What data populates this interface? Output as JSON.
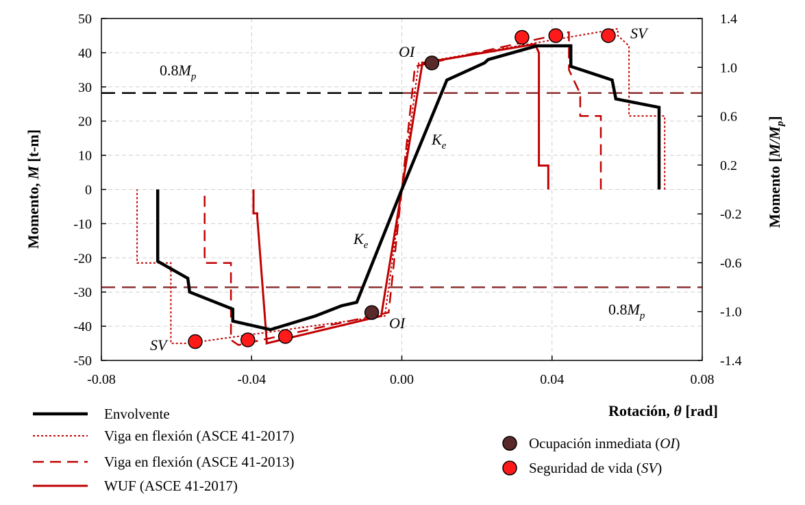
{
  "chart_data": {
    "type": "line",
    "xlabel": {
      "prefix": "Rotación, ",
      "sym": "θ",
      "suffix": " [rad]"
    },
    "ylabel": {
      "prefix": "Momento, ",
      "sym": "M",
      "suffix": " [t-m]"
    },
    "y2label": {
      "prefix": "Momento  [",
      "sym": "M/M",
      "sub": "p",
      "suffix": "]"
    },
    "xlim": [
      -0.08,
      0.08
    ],
    "ylim": [
      -50,
      50
    ],
    "y2lim": [
      -1.4,
      1.4
    ],
    "xticks": [
      -0.08,
      -0.04,
      0.0,
      0.04,
      0.08
    ],
    "xtick_labels": [
      "-0.08",
      "-0.04",
      "0.00",
      "0.04",
      "0.08"
    ],
    "yticks": [
      -50,
      -40,
      -30,
      -20,
      -10,
      0,
      10,
      20,
      30,
      40,
      50
    ],
    "ytick_labels": [
      "-50",
      "-40",
      "-30",
      "-20",
      "-10",
      "0",
      "10",
      "20",
      "30",
      "40",
      "50"
    ],
    "y2ticks": [
      -1.4,
      -1.0,
      -0.6,
      -0.2,
      0.2,
      0.6,
      1.0,
      1.4
    ],
    "y2tick_labels": [
      "-1.4",
      "-1.0",
      "-0.6",
      "-0.2",
      "0.2",
      "0.6",
      "1.0",
      "1.4"
    ],
    "grid": true,
    "colors": {
      "envolvente": "#000000",
      "red": "#c00000",
      "brown_line": "#8b3030",
      "oi_marker": "#5a2a2a",
      "sv_marker": "#ff1a1a"
    },
    "series": [
      {
        "name": "Envolvente",
        "style": "solid-black",
        "x": [
          0.0685,
          0.0685,
          0.057,
          0.056,
          0.045,
          0.045,
          0.036,
          0.023,
          0.022,
          0.012,
          0.0,
          -0.012,
          -0.016,
          -0.023,
          -0.035,
          -0.045,
          -0.045,
          -0.0565,
          -0.057,
          -0.065,
          -0.065
        ],
        "y": [
          0,
          24,
          26.5,
          32,
          36,
          42,
          42,
          38,
          37,
          32,
          0,
          -33,
          -34,
          -37,
          -41,
          -38.5,
          -35,
          -30,
          -26,
          -21,
          0
        ]
      },
      {
        "name": "Viga en flexión (ASCE 41-2017)",
        "style": "dotted-red",
        "x": [
          0.07,
          0.07,
          0.0605,
          0.0605,
          0.0575,
          0.0575,
          0.0045,
          0.0,
          -0.0045,
          -0.057,
          -0.0615,
          -0.0615,
          -0.0705,
          -0.0705
        ],
        "y": [
          0,
          21.5,
          21.5,
          42,
          45,
          47,
          37,
          0,
          -37,
          -45,
          -45,
          -21.5,
          -21.5,
          0
        ]
      },
      {
        "name": "Viga en flexión (ASCE 41-2013)",
        "style": "dashed-red",
        "x": [
          0.053,
          0.053,
          0.0475,
          0.0475,
          0.0445,
          0.0445,
          0.0035,
          0.0,
          -0.0035,
          -0.0435,
          -0.0455,
          -0.0455,
          -0.0525,
          -0.0525
        ],
        "y": [
          0,
          21.5,
          21.5,
          28,
          35,
          46,
          36,
          0,
          -36,
          -45.5,
          -44,
          -21.5,
          -21.5,
          0
        ]
      },
      {
        "name": "WUF (ASCE 41-2017)",
        "style": "solid-red",
        "x": [
          0.039,
          0.039,
          0.0365,
          0.0365,
          0.0355,
          0.0055,
          0.0,
          -0.0055,
          -0.036,
          -0.036,
          -0.0385,
          -0.0385,
          -0.0395,
          -0.0395
        ],
        "y": [
          0,
          7,
          7,
          40,
          42.5,
          37,
          0,
          -37,
          -45,
          -44,
          -8,
          -7,
          -7,
          0
        ]
      }
    ],
    "reference_lines": [
      {
        "name": "0.8Mp positive",
        "y": 28.2
      },
      {
        "name": "0.8Mp negative",
        "y": -28.6
      }
    ],
    "markers": {
      "oi": {
        "x": [
          0.008,
          -0.008
        ],
        "y": [
          37,
          -36
        ]
      },
      "sv": {
        "x": [
          0.032,
          0.041,
          0.055,
          -0.031,
          -0.041,
          -0.055
        ],
        "y": [
          44.5,
          45,
          45,
          -43,
          -44,
          -44.5
        ]
      }
    },
    "annotations": {
      "oi_top": "OI",
      "oi_bottom": "OI",
      "sv_top": "SV",
      "sv_bottom": "SV",
      "ke_top": {
        "main": "K",
        "sub": "e"
      },
      "ke_bottom": {
        "main": "K",
        "sub": "e"
      },
      "mp_top": {
        "pre": "0.8",
        "main": "M",
        "sub": "p"
      },
      "mp_bottom": {
        "pre": "0.8",
        "main": "M",
        "sub": "p"
      }
    },
    "legend": {
      "left": [
        {
          "label": "Envolvente",
          "style": "solid-black"
        },
        {
          "label": "Viga en flexión (ASCE 41-2017)",
          "style": "dotted-red"
        },
        {
          "label": "Viga en flexión (ASCE 41-2013)",
          "style": "dashed-red"
        },
        {
          "label": "WUF (ASCE 41-2017)",
          "style": "solid-red"
        }
      ],
      "right": [
        {
          "label_pre": "Ocupación inmediata (",
          "label_it": "OI",
          "label_post": ")",
          "marker": "oi"
        },
        {
          "label_pre": "Seguridad de vida (",
          "label_it": "SV",
          "label_post": ")",
          "marker": "sv"
        }
      ]
    }
  }
}
